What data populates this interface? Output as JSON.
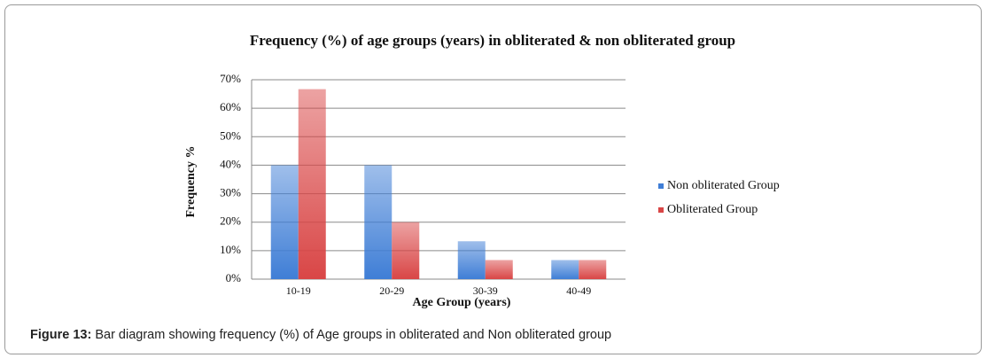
{
  "chart_data": {
    "type": "bar",
    "title": "Frequency (%) of age groups (years) in obliterated & non obliterated group",
    "x_label": "Age Group (years)",
    "y_label": "Frequency %",
    "categories": [
      "10-19",
      "20-29",
      "30-39",
      "40-49"
    ],
    "series": [
      {
        "name": "Non obliterated Group",
        "color": "#3f7ed6",
        "values": [
          40,
          40,
          13.3,
          6.7
        ]
      },
      {
        "name": "Obliterated Group",
        "color": "#d94646",
        "values": [
          66.7,
          20,
          6.7,
          6.7
        ]
      }
    ],
    "ylim": [
      0,
      70
    ],
    "yticks": [
      {
        "value": 0,
        "label": "0%"
      },
      {
        "value": 10,
        "label": "10%"
      },
      {
        "value": 20,
        "label": "20%"
      },
      {
        "value": 30,
        "label": "30%"
      },
      {
        "value": 40,
        "label": "40%"
      },
      {
        "value": 50,
        "label": "50%"
      },
      {
        "value": 60,
        "label": "60%"
      },
      {
        "value": 70,
        "label": "70%"
      }
    ],
    "grid": true,
    "legend": "right"
  },
  "caption": {
    "label": "Figure 13:",
    "text": "Bar diagram showing frequency (%) of Age groups in obliterated and Non obliterated group"
  }
}
